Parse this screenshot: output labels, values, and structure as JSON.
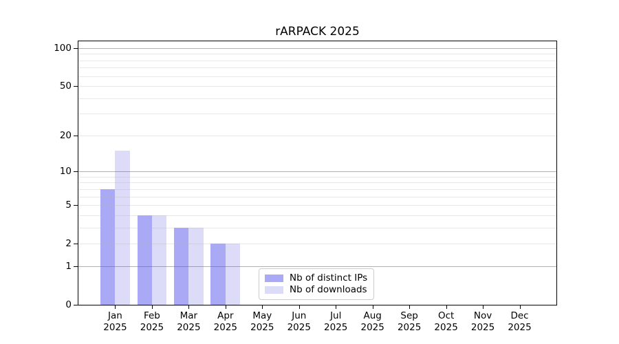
{
  "title": "rARPACK 2025",
  "chart_data": {
    "type": "bar",
    "title": "rARPACK 2025",
    "x_axis": {
      "months": [
        "Jan",
        "Feb",
        "Mar",
        "Apr",
        "May",
        "Jun",
        "Jul",
        "Aug",
        "Sep",
        "Oct",
        "Nov",
        "Dec"
      ],
      "year": "2025"
    },
    "y_axis": {
      "scale": "log1p",
      "ylim": [
        0,
        113
      ],
      "tick_labels": [
        "100",
        "50",
        "20",
        "10",
        "5",
        "2",
        "1",
        "0"
      ],
      "tick_values": [
        100,
        50,
        20,
        10,
        5,
        2,
        1,
        0
      ],
      "major_grid_values": [
        1,
        10,
        100
      ],
      "minor_grid_values": [
        2,
        3,
        4,
        5,
        6,
        7,
        8,
        9,
        20,
        30,
        40,
        50,
        60,
        70,
        80,
        90
      ],
      "grid": true
    },
    "series": [
      {
        "name": "Nb of distinct IPs",
        "color": "#a9a9f6",
        "values": [
          7,
          4,
          3,
          2,
          0,
          0,
          0,
          0,
          0,
          0,
          0,
          0
        ]
      },
      {
        "name": "Nb of downloads",
        "color": "#dcdcf8",
        "values": [
          15,
          4,
          3,
          2,
          0,
          0,
          0,
          0,
          0,
          0,
          0,
          0
        ]
      }
    ],
    "legend": {
      "position": "lower-center",
      "border_color": "#cccccc",
      "entries": [
        "Nb of distinct IPs",
        "Nb of downloads"
      ]
    },
    "colors": {
      "background": "#ffffff",
      "axis": "#000000",
      "major_grid": "#b0b0b0",
      "minor_grid": "#e8e8e8",
      "text": "#000000"
    }
  }
}
